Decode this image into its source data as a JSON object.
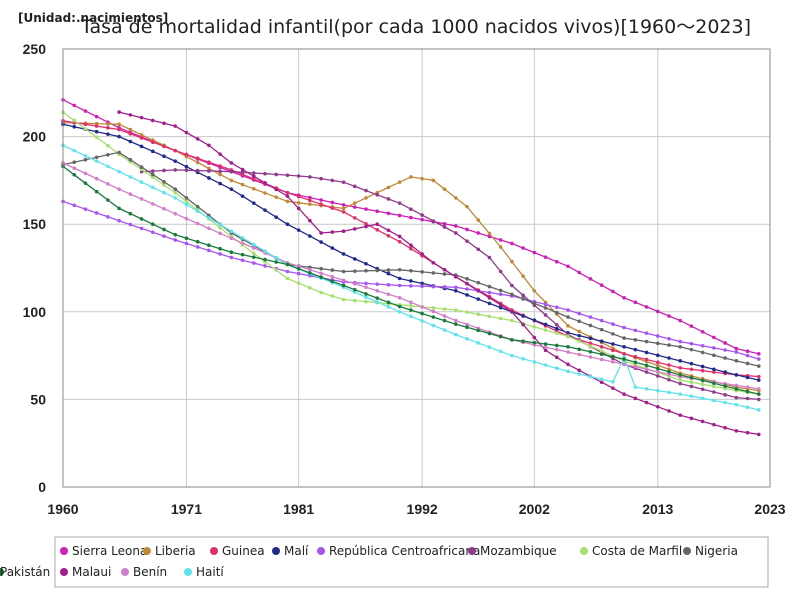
{
  "chart_data": {
    "type": "line",
    "title": "Tasa de mortalidad infantil(por cada 1000 nacidos vivos)[1960～2023]",
    "unit_label": "[Unidad:.nacimientos]",
    "xlabel": "",
    "ylabel": "",
    "xlim": [
      1960,
      2023
    ],
    "ylim": [
      0,
      250
    ],
    "x_ticks": [
      "1960",
      "1971",
      "1981",
      "1992",
      "2002",
      "2013",
      "2023"
    ],
    "y_ticks": [
      "0",
      "50",
      "100",
      "150",
      "200",
      "250"
    ],
    "legend_position": "bottom",
    "series": [
      {
        "name": "Sierra Leona",
        "color": "#cc1fb4",
        "points": [
          [
            1960,
            221
          ],
          [
            1965,
            205
          ],
          [
            1970,
            192
          ],
          [
            1975,
            180
          ],
          [
            1980,
            168
          ],
          [
            1985,
            161
          ],
          [
            1990,
            155
          ],
          [
            1995,
            149
          ],
          [
            2000,
            139
          ],
          [
            2005,
            126
          ],
          [
            2010,
            108
          ],
          [
            2015,
            95
          ],
          [
            2020,
            79
          ],
          [
            2022,
            76
          ]
        ]
      },
      {
        "name": "Liberia",
        "color": "#c0893a",
        "points": [
          [
            1960,
            208
          ],
          [
            1965,
            207
          ],
          [
            1970,
            192
          ],
          [
            1975,
            175
          ],
          [
            1980,
            163
          ],
          [
            1985,
            159
          ],
          [
            1988,
            168
          ],
          [
            1991,
            177
          ],
          [
            1993,
            175
          ],
          [
            1996,
            160
          ],
          [
            1999,
            137
          ],
          [
            2002,
            112
          ],
          [
            2005,
            92
          ],
          [
            2010,
            76
          ],
          [
            2015,
            65
          ],
          [
            2020,
            57
          ],
          [
            2022,
            55
          ]
        ]
      },
      {
        "name": "Guinea",
        "color": "#e0306a",
        "points": [
          [
            1960,
            209
          ],
          [
            1965,
            204
          ],
          [
            1970,
            192
          ],
          [
            1975,
            181
          ],
          [
            1980,
            168
          ],
          [
            1985,
            157
          ],
          [
            1990,
            140
          ],
          [
            1995,
            120
          ],
          [
            2000,
            101
          ],
          [
            2005,
            86
          ],
          [
            2010,
            76
          ],
          [
            2015,
            68
          ],
          [
            2020,
            64
          ],
          [
            2022,
            63
          ]
        ]
      },
      {
        "name": "Malí",
        "color": "#1f2a8a",
        "points": [
          [
            1960,
            207
          ],
          [
            1965,
            200
          ],
          [
            1970,
            186
          ],
          [
            1975,
            170
          ],
          [
            1980,
            150
          ],
          [
            1985,
            133
          ],
          [
            1990,
            119
          ],
          [
            1995,
            112
          ],
          [
            2000,
            100
          ],
          [
            2005,
            88
          ],
          [
            2010,
            80
          ],
          [
            2015,
            72
          ],
          [
            2020,
            64
          ],
          [
            2022,
            61
          ]
        ]
      },
      {
        "name": "República Centroafricana",
        "color": "#a855f0",
        "points": [
          [
            1960,
            163
          ],
          [
            1965,
            152
          ],
          [
            1970,
            141
          ],
          [
            1975,
            131
          ],
          [
            1980,
            123
          ],
          [
            1985,
            117
          ],
          [
            1990,
            115
          ],
          [
            1995,
            114
          ],
          [
            2000,
            109
          ],
          [
            2005,
            101
          ],
          [
            2010,
            91
          ],
          [
            2015,
            83
          ],
          [
            2020,
            77
          ],
          [
            2022,
            73
          ]
        ]
      },
      {
        "name": "Mozambique",
        "color": "#8f3a8c",
        "points": [
          [
            1967,
            180
          ],
          [
            1970,
            181
          ],
          [
            1975,
            180
          ],
          [
            1980,
            178
          ],
          [
            1982,
            177
          ],
          [
            1985,
            174
          ],
          [
            1990,
            162
          ],
          [
            1995,
            145
          ],
          [
            1998,
            131
          ],
          [
            2000,
            115
          ],
          [
            2005,
            87
          ],
          [
            2010,
            70
          ],
          [
            2015,
            59
          ],
          [
            2020,
            51
          ],
          [
            2022,
            50
          ]
        ]
      },
      {
        "name": "Costa de Marfil",
        "color": "#a8e070",
        "points": [
          [
            1960,
            214
          ],
          [
            1965,
            190
          ],
          [
            1970,
            168
          ],
          [
            1975,
            143
          ],
          [
            1980,
            119
          ],
          [
            1983,
            111
          ],
          [
            1985,
            107
          ],
          [
            1990,
            104
          ],
          [
            1995,
            101
          ],
          [
            2000,
            95
          ],
          [
            2005,
            86
          ],
          [
            2010,
            72
          ],
          [
            2015,
            61
          ],
          [
            2020,
            55
          ],
          [
            2022,
            53
          ]
        ]
      },
      {
        "name": "Nigeria",
        "color": "#666666",
        "points": [
          [
            1960,
            184
          ],
          [
            1965,
            191
          ],
          [
            1970,
            170
          ],
          [
            1975,
            145
          ],
          [
            1980,
            127
          ],
          [
            1985,
            123
          ],
          [
            1990,
            124
          ],
          [
            1995,
            121
          ],
          [
            2000,
            110
          ],
          [
            2005,
            97
          ],
          [
            2010,
            85
          ],
          [
            2015,
            80
          ],
          [
            2020,
            72
          ],
          [
            2022,
            69
          ]
        ]
      },
      {
        "name": "Malaui",
        "color": "#a0208a",
        "points": [
          [
            1965,
            214
          ],
          [
            1970,
            206
          ],
          [
            1973,
            195
          ],
          [
            1975,
            185
          ],
          [
            1980,
            166
          ],
          [
            1983,
            145
          ],
          [
            1985,
            146
          ],
          [
            1988,
            150
          ],
          [
            1990,
            143
          ],
          [
            1993,
            128
          ],
          [
            1995,
            120
          ],
          [
            2000,
            100
          ],
          [
            2003,
            78
          ],
          [
            2005,
            70
          ],
          [
            2010,
            53
          ],
          [
            2015,
            41
          ],
          [
            2020,
            32
          ],
          [
            2022,
            30
          ]
        ]
      },
      {
        "name": "Benín",
        "color": "#d27ec8",
        "points": [
          [
            1960,
            185
          ],
          [
            1965,
            170
          ],
          [
            1970,
            156
          ],
          [
            1975,
            142
          ],
          [
            1980,
            128
          ],
          [
            1985,
            118
          ],
          [
            1990,
            108
          ],
          [
            1995,
            95
          ],
          [
            2000,
            84
          ],
          [
            2005,
            77
          ],
          [
            2010,
            70
          ],
          [
            2015,
            63
          ],
          [
            2020,
            58
          ],
          [
            2022,
            56
          ]
        ]
      },
      {
        "name": "Haití",
        "color": "#5fe3ec",
        "points": [
          [
            1960,
            195
          ],
          [
            1965,
            180
          ],
          [
            1970,
            165
          ],
          [
            1975,
            146
          ],
          [
            1980,
            127
          ],
          [
            1985,
            114
          ],
          [
            1990,
            100
          ],
          [
            1995,
            87
          ],
          [
            2000,
            75
          ],
          [
            2005,
            66
          ],
          [
            2009,
            60
          ],
          [
            2010,
            74
          ],
          [
            2011,
            57
          ],
          [
            2015,
            53
          ],
          [
            2020,
            47
          ],
          [
            2022,
            44
          ]
        ]
      },
      {
        "name": "Pakistán",
        "color": "#1a7a3c",
        "points": [
          [
            1960,
            183
          ],
          [
            1965,
            159
          ],
          [
            1970,
            144
          ],
          [
            1975,
            134
          ],
          [
            1980,
            127
          ],
          [
            1985,
            115
          ],
          [
            1990,
            103
          ],
          [
            1995,
            93
          ],
          [
            2000,
            84
          ],
          [
            2005,
            80
          ],
          [
            2010,
            73
          ],
          [
            2015,
            64
          ],
          [
            2020,
            56
          ],
          [
            2022,
            53
          ]
        ]
      }
    ]
  }
}
